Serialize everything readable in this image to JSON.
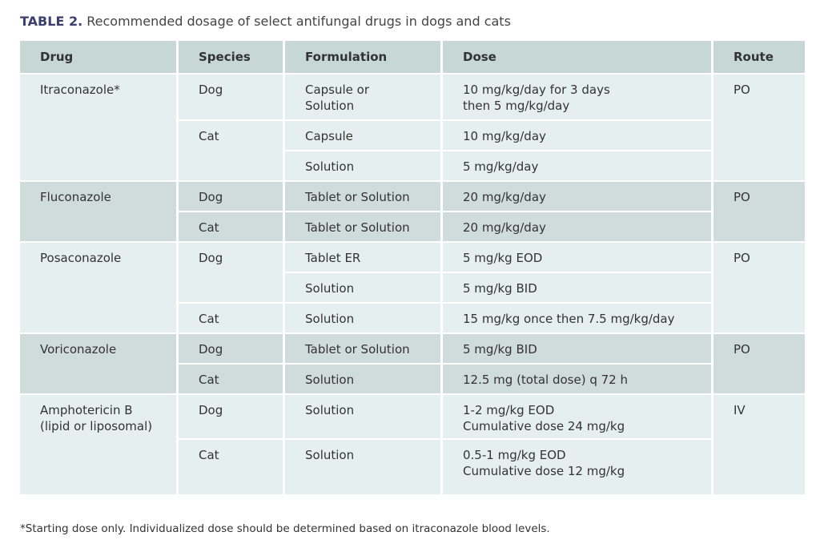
{
  "title": {
    "label": "TABLE 2.",
    "text": "Recommended dosage of select antifungal drugs in dogs and cats"
  },
  "table": {
    "headers": [
      "Drug",
      "Species",
      "Formulation",
      "Dose",
      "Route"
    ],
    "groups": [
      {
        "drug": "Itraconazole*",
        "route": "PO",
        "species": [
          {
            "name": "Dog",
            "rows": [
              {
                "formulation": "Capsule or\nSolution",
                "dose": "10 mg/kg/day for 3 days\nthen 5 mg/kg/day"
              }
            ]
          },
          {
            "name": "Cat",
            "rows": [
              {
                "formulation": "Capsule",
                "dose": "10 mg/kg/day"
              },
              {
                "formulation": "Solution",
                "dose": "5 mg/kg/day"
              }
            ]
          }
        ]
      },
      {
        "drug": "Fluconazole",
        "route": "PO",
        "species": [
          {
            "name": "Dog",
            "rows": [
              {
                "formulation": "Tablet or Solution",
                "dose": "20 mg/kg/day"
              }
            ]
          },
          {
            "name": "Cat",
            "rows": [
              {
                "formulation": "Tablet or Solution",
                "dose": "20 mg/kg/day"
              }
            ]
          }
        ]
      },
      {
        "drug": "Posaconazole",
        "route": "PO",
        "species": [
          {
            "name": "Dog",
            "rows": [
              {
                "formulation": "Tablet ER",
                "dose": "5 mg/kg EOD"
              },
              {
                "formulation": "Solution",
                "dose": "5 mg/kg BID"
              }
            ]
          },
          {
            "name": "Cat",
            "rows": [
              {
                "formulation": "Solution",
                "dose": "15 mg/kg once then 7.5 mg/kg/day"
              }
            ]
          }
        ]
      },
      {
        "drug": "Voriconazole",
        "route": "PO",
        "species": [
          {
            "name": "Dog",
            "rows": [
              {
                "formulation": "Tablet or Solution",
                "dose": "5 mg/kg BID"
              }
            ]
          },
          {
            "name": "Cat",
            "rows": [
              {
                "formulation": "Solution",
                "dose": "12.5 mg (total dose) q 72 h"
              }
            ]
          }
        ]
      },
      {
        "drug": "Amphotericin B\n(lipid or liposomal)",
        "route": "IV",
        "species": [
          {
            "name": "Dog",
            "rows": [
              {
                "formulation": "Solution",
                "dose": "1-2 mg/kg EOD\nCumulative dose 24 mg/kg"
              }
            ]
          },
          {
            "name": "Cat",
            "rows": [
              {
                "formulation": "Solution",
                "dose": "0.5-1 mg/kg EOD\nCumulative dose 12 mg/kg"
              }
            ]
          }
        ]
      }
    ]
  },
  "footnote": "*Starting dose only. Individualized dose should be determined based on itraconazole blood levels."
}
